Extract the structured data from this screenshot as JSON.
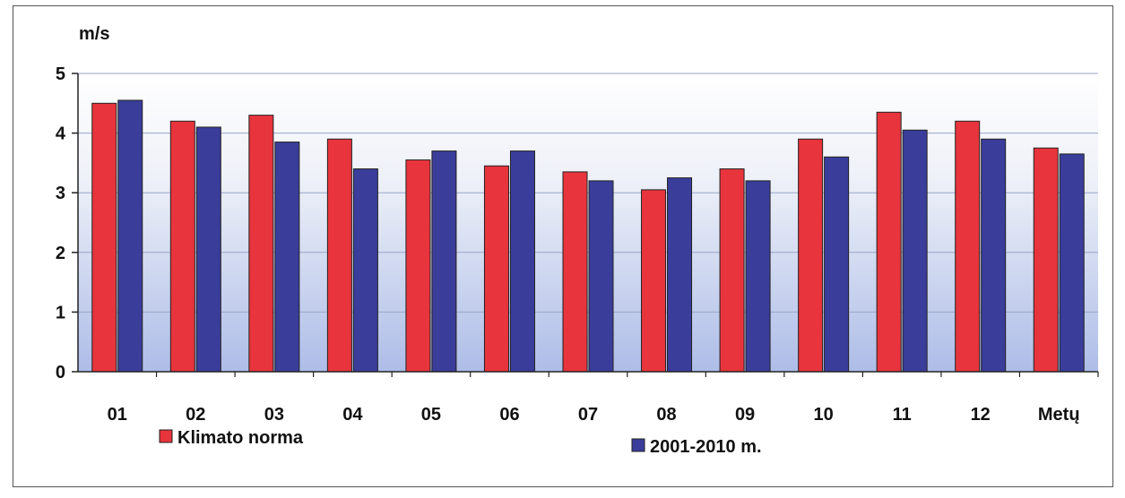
{
  "chart_data": {
    "type": "bar",
    "title": "",
    "ylabel": "m/s",
    "xlabel": "",
    "ylim": [
      0,
      5
    ],
    "yticks": [
      "0",
      "1",
      "2",
      "3",
      "4",
      "5"
    ],
    "grid": true,
    "legend_position": "bottom",
    "categories": [
      "01",
      "02",
      "03",
      "04",
      "05",
      "06",
      "07",
      "08",
      "09",
      "10",
      "11",
      "12",
      "Metų"
    ],
    "series": [
      {
        "name": "Klimato norma",
        "color": "#e8343c",
        "values": [
          4.5,
          4.2,
          4.3,
          3.9,
          3.55,
          3.45,
          3.35,
          3.05,
          3.4,
          3.9,
          4.35,
          4.2,
          3.75
        ]
      },
      {
        "name": "2001-2010 m.",
        "color": "#3a3d9a",
        "values": [
          4.55,
          4.1,
          3.85,
          3.4,
          3.7,
          3.7,
          3.2,
          3.25,
          3.2,
          3.6,
          4.05,
          3.9,
          3.65
        ]
      }
    ]
  }
}
